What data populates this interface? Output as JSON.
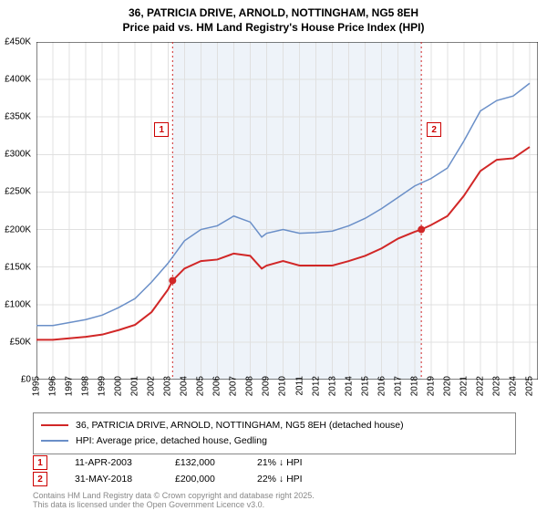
{
  "title_line1": "36, PATRICIA DRIVE, ARNOLD, NOTTINGHAM, NG5 8EH",
  "title_line2": "Price paid vs. HM Land Registry's House Price Index (HPI)",
  "chart": {
    "type": "line",
    "ylim": [
      0,
      450000
    ],
    "ytick_step": 50000,
    "ytick_prefix": "£",
    "ytick_labels": [
      "£0",
      "£50K",
      "£100K",
      "£150K",
      "£200K",
      "£250K",
      "£300K",
      "£350K",
      "£400K",
      "£450K"
    ],
    "x_years": [
      1995,
      1996,
      1997,
      1998,
      1999,
      2000,
      2001,
      2002,
      2003,
      2004,
      2005,
      2006,
      2007,
      2008,
      2009,
      2010,
      2011,
      2012,
      2013,
      2014,
      2015,
      2016,
      2017,
      2018,
      2019,
      2020,
      2021,
      2022,
      2023,
      2024,
      2025
    ],
    "xlim": [
      1995,
      2025.5
    ],
    "background_color": "#ffffff",
    "grid_color": "#e0e0e0",
    "grid_on": true,
    "band_color": "#eef3f9",
    "band_start": 2003.28,
    "band_end": 2018.41,
    "series": {
      "price": {
        "color": "#d12727",
        "width": 2,
        "data": [
          [
            1995,
            53000
          ],
          [
            1996,
            53000
          ],
          [
            1997,
            55000
          ],
          [
            1998,
            57000
          ],
          [
            1999,
            60000
          ],
          [
            2000,
            66000
          ],
          [
            2001,
            73000
          ],
          [
            2002,
            90000
          ],
          [
            2003,
            120000
          ],
          [
            2003.28,
            132000
          ],
          [
            2004,
            148000
          ],
          [
            2005,
            158000
          ],
          [
            2006,
            160000
          ],
          [
            2007,
            168000
          ],
          [
            2008,
            165000
          ],
          [
            2008.7,
            148000
          ],
          [
            2009,
            152000
          ],
          [
            2010,
            158000
          ],
          [
            2011,
            152000
          ],
          [
            2012,
            152000
          ],
          [
            2013,
            152000
          ],
          [
            2014,
            158000
          ],
          [
            2015,
            165000
          ],
          [
            2016,
            175000
          ],
          [
            2017,
            188000
          ],
          [
            2018,
            197000
          ],
          [
            2018.41,
            200000
          ],
          [
            2019,
            206000
          ],
          [
            2020,
            218000
          ],
          [
            2021,
            245000
          ],
          [
            2022,
            278000
          ],
          [
            2023,
            293000
          ],
          [
            2024,
            295000
          ],
          [
            2025,
            310000
          ]
        ],
        "markers": [
          {
            "x": 2003.28,
            "y": 132000
          },
          {
            "x": 2018.41,
            "y": 200000
          }
        ]
      },
      "hpi": {
        "color": "#6a8fc8",
        "width": 1.5,
        "data": [
          [
            1995,
            72000
          ],
          [
            1996,
            72000
          ],
          [
            1997,
            76000
          ],
          [
            1998,
            80000
          ],
          [
            1999,
            86000
          ],
          [
            2000,
            96000
          ],
          [
            2001,
            108000
          ],
          [
            2002,
            130000
          ],
          [
            2003,
            155000
          ],
          [
            2004,
            185000
          ],
          [
            2005,
            200000
          ],
          [
            2006,
            205000
          ],
          [
            2007,
            218000
          ],
          [
            2008,
            210000
          ],
          [
            2008.7,
            190000
          ],
          [
            2009,
            195000
          ],
          [
            2010,
            200000
          ],
          [
            2011,
            195000
          ],
          [
            2012,
            196000
          ],
          [
            2013,
            198000
          ],
          [
            2014,
            205000
          ],
          [
            2015,
            215000
          ],
          [
            2016,
            228000
          ],
          [
            2017,
            243000
          ],
          [
            2018,
            258000
          ],
          [
            2019,
            268000
          ],
          [
            2020,
            282000
          ],
          [
            2021,
            318000
          ],
          [
            2022,
            358000
          ],
          [
            2023,
            372000
          ],
          [
            2024,
            378000
          ],
          [
            2025,
            395000
          ]
        ]
      }
    }
  },
  "legend": {
    "price_label": "36, PATRICIA DRIVE, ARNOLD, NOTTINGHAM, NG5 8EH (detached house)",
    "hpi_label": "HPI: Average price, detached house, Gedling"
  },
  "callouts": [
    {
      "num": "1",
      "date": "11-APR-2003",
      "price": "£132,000",
      "hpi": "21% ↓ HPI"
    },
    {
      "num": "2",
      "date": "31-MAY-2018",
      "price": "£200,000",
      "hpi": "22% ↓ HPI"
    }
  ],
  "attribution_line1": "Contains HM Land Registry data © Crown copyright and database right 2025.",
  "attribution_line2": "This data is licensed under the Open Government Licence v3.0."
}
